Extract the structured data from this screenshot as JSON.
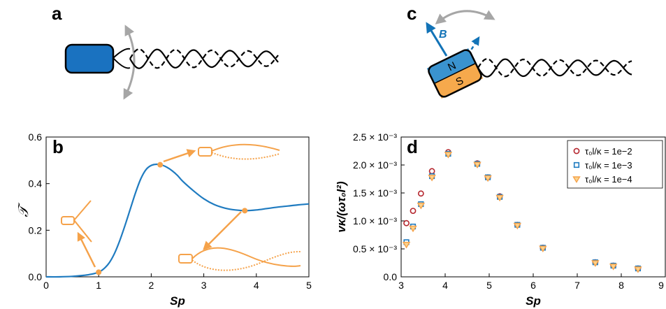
{
  "colors": {
    "head_blue": "#1a72c0",
    "curve_blue": "#1f7bc0",
    "orange": "#f5a24a",
    "red": "#b5262e",
    "grey": "#a6a6a6",
    "magnet_blue": "#3a93cf",
    "magnet_orange": "#f6a94c"
  },
  "panels": {
    "a": "a",
    "b": "b",
    "c": "c",
    "d": "d"
  },
  "panel_c": {
    "b_label": "B",
    "north": "N",
    "south": "S"
  },
  "chart_data": [
    {
      "type": "line",
      "panel": "b",
      "xlabel": "Sp",
      "ylabel": "𝒯",
      "xlim": [
        0,
        5
      ],
      "ylim": [
        0,
        0.6
      ],
      "xticks": [
        "0",
        "1",
        "2",
        "3",
        "4",
        "5"
      ],
      "yticks": [
        "0.0",
        "0.2",
        "0.4",
        "0.6"
      ],
      "series": [
        {
          "x": [
            0,
            0.25,
            0.5,
            0.7,
            0.85,
            1.0,
            1.1,
            1.2,
            1.3,
            1.4,
            1.5,
            1.6,
            1.7,
            1.8,
            1.9,
            2.0,
            2.1,
            2.2,
            2.3,
            2.4,
            2.5,
            2.6,
            2.8,
            3.0,
            3.2,
            3.4,
            3.6,
            3.8,
            4.0,
            4.2,
            4.4,
            4.6,
            4.8,
            5.0
          ],
          "y": [
            0.0,
            0.0,
            0.002,
            0.006,
            0.011,
            0.02,
            0.035,
            0.06,
            0.1,
            0.155,
            0.22,
            0.29,
            0.36,
            0.42,
            0.46,
            0.478,
            0.483,
            0.48,
            0.47,
            0.455,
            0.435,
            0.41,
            0.37,
            0.335,
            0.31,
            0.295,
            0.287,
            0.284,
            0.287,
            0.293,
            0.299,
            0.304,
            0.309,
            0.313
          ]
        }
      ],
      "markers": [
        {
          "x": 1.0,
          "y": 0.02
        },
        {
          "x": 2.17,
          "y": 0.481
        },
        {
          "x": 3.78,
          "y": 0.284
        }
      ]
    },
    {
      "type": "scatter",
      "panel": "d",
      "xlabel": "Sp",
      "ylabel": "vκ/(ωτ₀l²)",
      "xlim": [
        3,
        9
      ],
      "ylim": [
        0,
        0.0025
      ],
      "xticks": [
        "3",
        "4",
        "5",
        "6",
        "7",
        "8",
        "9"
      ],
      "yticks": [
        "0.0",
        "0.5 × 10⁻³",
        "1.0 × 10⁻³",
        "1.5 × 10⁻³",
        "2.0 × 10⁻³",
        "2.5 × 10⁻³"
      ],
      "legend_position": "top-right",
      "series": [
        {
          "name": "τ₀l/κ = 1e−2",
          "x": [
            3.12,
            3.27,
            3.45,
            3.7,
            4.07,
            4.73,
            4.97,
            5.24,
            5.64,
            6.22,
            7.41,
            7.82,
            8.38
          ],
          "y": [
            0.00096,
            0.00118,
            0.00149,
            0.00189,
            0.00223,
            0.00203,
            0.00178,
            0.00144,
            0.00093,
            0.00052,
            0.00026,
            0.0002,
            0.00015
          ]
        },
        {
          "name": "τ₀l/κ = 1e−3",
          "x": [
            3.12,
            3.27,
            3.45,
            3.7,
            4.07,
            4.73,
            4.97,
            5.24,
            5.64,
            6.22,
            7.41,
            7.82,
            8.38
          ],
          "y": [
            0.00062,
            0.0009,
            0.0013,
            0.0018,
            0.0022,
            0.00202,
            0.00178,
            0.00143,
            0.00093,
            0.00052,
            0.00026,
            0.0002,
            0.00015
          ]
        },
        {
          "name": "τ₀l/κ = 1e−4",
          "x": [
            3.12,
            3.27,
            3.45,
            3.7,
            4.07,
            4.73,
            4.97,
            5.24,
            5.64,
            6.22,
            7.41,
            7.82,
            8.38
          ],
          "y": [
            0.00058,
            0.00087,
            0.00128,
            0.00178,
            0.00219,
            0.00201,
            0.00177,
            0.00142,
            0.00092,
            0.00051,
            0.00025,
            0.00019,
            0.00014
          ]
        }
      ]
    }
  ]
}
